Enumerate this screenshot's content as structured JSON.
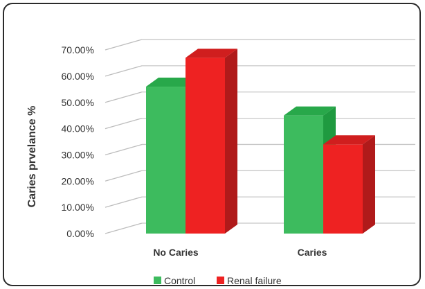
{
  "chart_data": {
    "type": "bar",
    "style": "3d-clustered-column",
    "categories": [
      "No Caries",
      "Caries"
    ],
    "series": [
      {
        "name": "Control",
        "values": [
          56,
          45
        ],
        "color": "#3dbb5e",
        "side_color": "#1f9a40",
        "top_color": "#28a84a"
      },
      {
        "name": "Renal failure",
        "values": [
          67,
          34
        ],
        "color": "#ee2222",
        "side_color": "#b01a1a",
        "top_color": "#d01e1e"
      }
    ],
    "ylabel": "Caries prvelance %",
    "xlabel": "",
    "ylim": [
      0,
      70
    ],
    "ytick_step": 10,
    "yticks": [
      "0.00%",
      "10.00%",
      "20.00%",
      "30.00%",
      "40.00%",
      "50.00%",
      "60.00%",
      "70.00%"
    ],
    "grid": true,
    "legend_position": "bottom"
  }
}
